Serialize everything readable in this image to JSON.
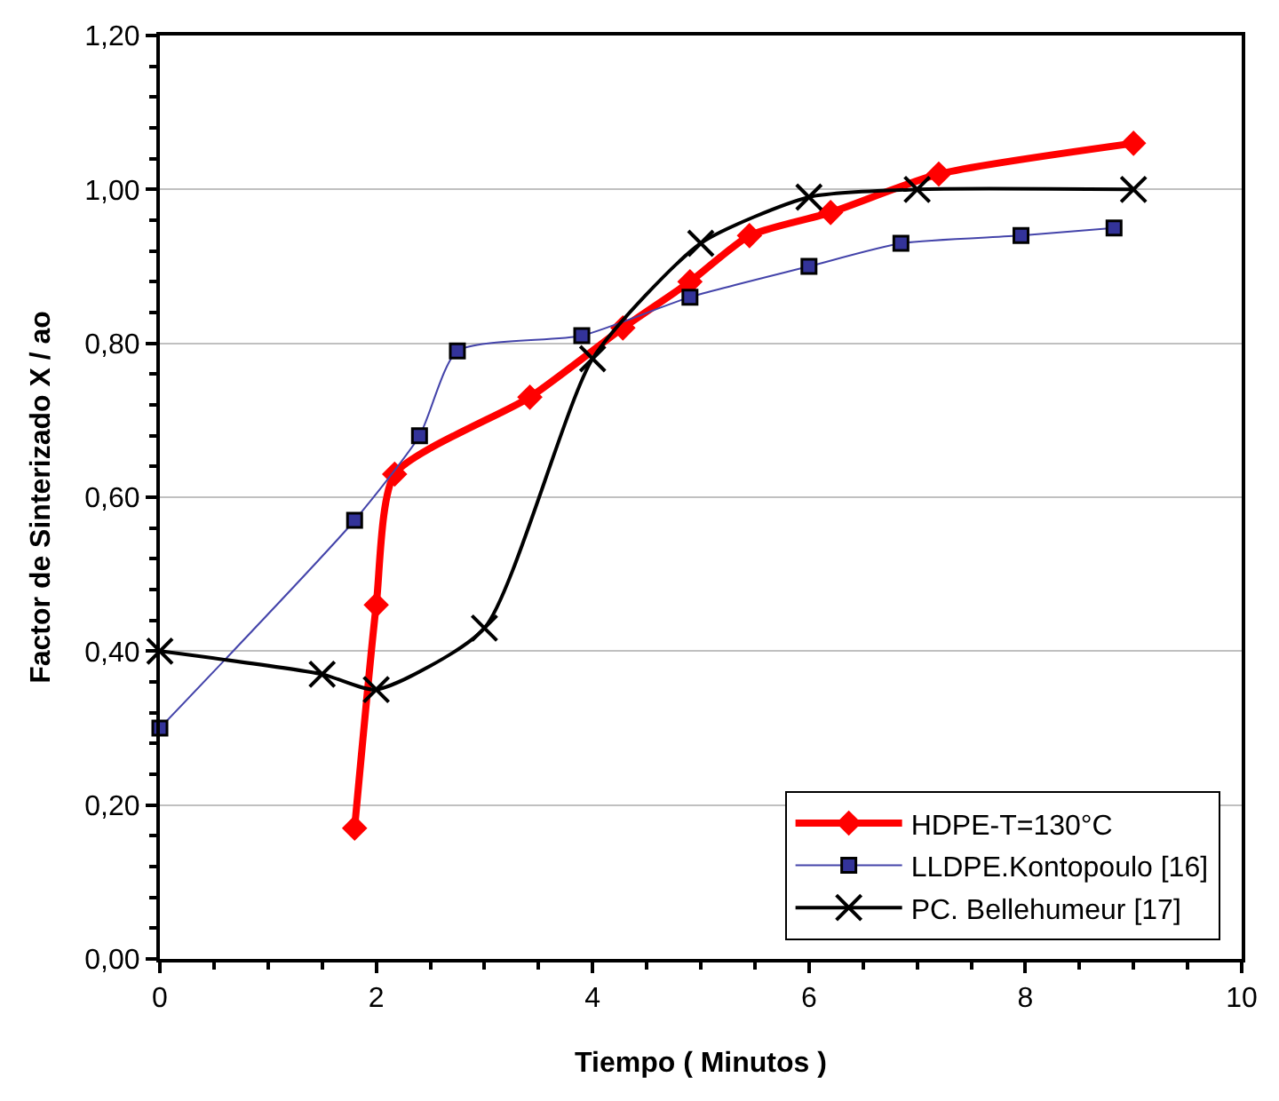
{
  "chart_data": {
    "type": "line",
    "xlabel": "Tiempo ( Minutos )",
    "ylabel": "Factor de Sinterizado X / ao",
    "xlim": [
      0,
      10
    ],
    "xticks": [
      0,
      2,
      4,
      6,
      8,
      10
    ],
    "ylim": [
      0,
      1.2
    ],
    "yticks": [
      {
        "value": 0,
        "label": "0,00"
      },
      {
        "value": 0.2,
        "label": "0,20"
      },
      {
        "value": 0.4,
        "label": "0,40"
      },
      {
        "value": 0.6,
        "label": "0,60"
      },
      {
        "value": 0.8,
        "label": "0,80"
      },
      {
        "value": 1.0,
        "label": "1,00"
      },
      {
        "value": 1.2,
        "label": "1,20"
      }
    ],
    "grid": "y",
    "legend": "bottom right",
    "series": [
      {
        "name": "HDPE-T=130°C",
        "color": "#ff0000",
        "marker": "diamond",
        "x": [
          1.8,
          2.0,
          2.17,
          3.42,
          4.28,
          4.9,
          5.45,
          6.2,
          7.2,
          9.0
        ],
        "values": [
          0.17,
          0.46,
          0.63,
          0.73,
          0.82,
          0.88,
          0.94,
          0.97,
          1.02,
          1.06
        ]
      },
      {
        "name": "LLDPE.Kontopoulo [16]",
        "color": "#333399",
        "marker": "square",
        "x": [
          0,
          1.8,
          2.4,
          2.75,
          3.9,
          4.9,
          6.0,
          6.85,
          7.96,
          8.82
        ],
        "values": [
          0.3,
          0.57,
          0.68,
          0.79,
          0.81,
          0.86,
          0.9,
          0.93,
          0.94,
          0.95
        ]
      },
      {
        "name": "PC. Bellehumeur [17]",
        "color": "#000000",
        "marker": "cross",
        "x": [
          0,
          1.5,
          2.0,
          3.0,
          4.0,
          5.0,
          6.0,
          7.0,
          9.0
        ],
        "values": [
          0.4,
          0.37,
          0.35,
          0.43,
          0.78,
          0.93,
          0.99,
          1.0,
          1.0
        ]
      }
    ]
  }
}
